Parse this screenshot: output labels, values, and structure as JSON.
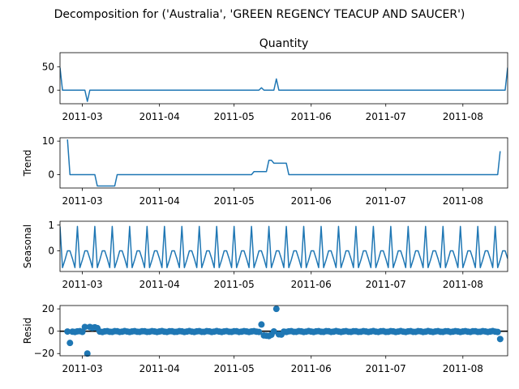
{
  "figure": {
    "title": "Decomposition for ('Australia', 'GREEN REGENCY TEACUP AND SAUCER')"
  },
  "chart_data": [
    {
      "type": "line",
      "panel": "observed",
      "title": "Quantity",
      "ylabel": "",
      "xlim": [
        "2011-02-20",
        "2011-08-19"
      ],
      "ylim": [
        -29,
        80
      ],
      "yticks": [
        0,
        50
      ],
      "xticks": [
        "2011-03",
        "2011-04",
        "2011-05",
        "2011-06",
        "2011-07",
        "2011-08"
      ],
      "series": [
        {
          "color": "#1f77b4",
          "points": [
            [
              "2011-02-20",
              48
            ],
            [
              "2011-02-21",
              0
            ],
            [
              "2011-03-02",
              0
            ],
            [
              "2011-03-03",
              -24
            ],
            [
              "2011-03-04",
              0
            ],
            [
              "2011-05-11",
              0
            ],
            [
              "2011-05-12",
              5
            ],
            [
              "2011-05-13",
              0
            ],
            [
              "2011-05-17",
              0
            ],
            [
              "2011-05-18",
              24
            ],
            [
              "2011-05-19",
              0
            ],
            [
              "2011-08-18",
              0
            ],
            [
              "2011-08-19",
              48
            ]
          ]
        }
      ]
    },
    {
      "type": "line",
      "panel": "trend",
      "title": "",
      "ylabel": "Trend",
      "xlim": [
        "2011-02-20",
        "2011-08-19"
      ],
      "ylim": [
        -4,
        11
      ],
      "yticks": [
        0,
        10
      ],
      "xticks": [
        "2011-03",
        "2011-04",
        "2011-05",
        "2011-06",
        "2011-07",
        "2011-08"
      ],
      "series": [
        {
          "color": "#1f77b4",
          "points": [
            [
              "2011-02-23",
              10.5
            ],
            [
              "2011-02-24",
              0
            ],
            [
              "2011-03-06",
              0
            ],
            [
              "2011-03-07",
              -3.4
            ],
            [
              "2011-03-14",
              -3.4
            ],
            [
              "2011-03-15",
              0
            ],
            [
              "2011-05-08",
              0
            ],
            [
              "2011-05-09",
              0.9
            ],
            [
              "2011-05-14",
              0.9
            ],
            [
              "2011-05-15",
              4.3
            ],
            [
              "2011-05-16",
              4.3
            ],
            [
              "2011-05-17",
              3.4
            ],
            [
              "2011-05-22",
              3.4
            ],
            [
              "2011-05-23",
              0
            ],
            [
              "2011-08-15",
              0
            ],
            [
              "2011-08-16",
              7
            ]
          ]
        }
      ]
    },
    {
      "type": "line",
      "panel": "seasonal",
      "title": "",
      "ylabel": "Seasonal",
      "xlim": [
        "2011-02-20",
        "2011-08-19"
      ],
      "ylim": [
        -0.8,
        1.15
      ],
      "yticks": [
        -1,
        0,
        1
      ],
      "ytick_labels": [
        "",
        "0",
        "1"
      ],
      "xticks": [
        "2011-03",
        "2011-04",
        "2011-05",
        "2011-06",
        "2011-07",
        "2011-08"
      ],
      "series": [
        {
          "color": "#1f77b4",
          "start": "2011-02-20",
          "end": "2011-08-19",
          "period_days": 7,
          "weekly_pattern": [
            0.95,
            -0.65,
            -0.35,
            0.0,
            0.0,
            -0.3,
            -0.65
          ]
        }
      ]
    },
    {
      "type": "scatter",
      "panel": "resid",
      "title": "",
      "ylabel": "Resid",
      "xlim": [
        "2011-02-20",
        "2011-08-19"
      ],
      "ylim": [
        -22,
        23
      ],
      "yticks": [
        -20,
        0,
        20
      ],
      "xticks": [
        "2011-03",
        "2011-04",
        "2011-05",
        "2011-06",
        "2011-07",
        "2011-08"
      ],
      "zero_line": true,
      "series": [
        {
          "color": "#1f77b4",
          "start": "2011-02-23",
          "end": "2011-08-16",
          "baseline": -0.3,
          "outliers": [
            [
              "2011-02-24",
              -10.5
            ],
            [
              "2011-03-02",
              3.8
            ],
            [
              "2011-03-03",
              -20
            ],
            [
              "2011-03-04",
              3.8
            ],
            [
              "2011-03-05",
              3.0
            ],
            [
              "2011-03-06",
              3.5
            ],
            [
              "2011-03-07",
              2.8
            ],
            [
              "2011-05-12",
              6
            ],
            [
              "2011-05-13",
              -3.8
            ],
            [
              "2011-05-14",
              -4.0
            ],
            [
              "2011-05-15",
              -4.3
            ],
            [
              "2011-05-16",
              -3.2
            ],
            [
              "2011-05-18",
              20
            ],
            [
              "2011-05-19",
              -2.8
            ],
            [
              "2011-05-20",
              -3.0
            ],
            [
              "2011-08-16",
              -7
            ]
          ]
        }
      ]
    }
  ]
}
